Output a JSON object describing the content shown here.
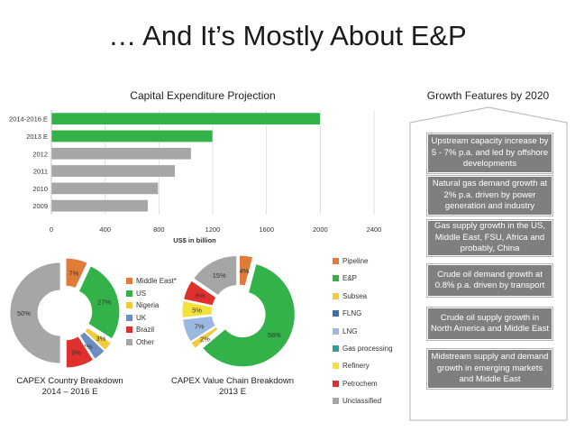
{
  "slide": {
    "title": "… And It’s Mostly About E&P"
  },
  "colors": {
    "green": "#33B24A",
    "gray": "#A6A6A6",
    "orange": "#E07B39",
    "yellow": "#F2CB3C",
    "blue": "#6C8EBF",
    "lightblue": "#9BB8E0",
    "red": "#E0302E",
    "panel": "#7F7F7F"
  },
  "chart_data": [
    {
      "type": "bar",
      "orientation": "horizontal",
      "title": "Capital Expenditure Projection",
      "xlabel": "US$ in billion",
      "categories": [
        "2014-2016 E",
        "2013 E",
        "2012",
        "2011",
        "2010",
        "2009"
      ],
      "values": [
        2000,
        1200,
        1040,
        920,
        795,
        720
      ],
      "bar_colors": [
        "#33B24A",
        "#33B24A",
        "#A6A6A6",
        "#A6A6A6",
        "#A6A6A6",
        "#A6A6A6"
      ],
      "xlim": [
        0,
        2400
      ],
      "xticks": [
        "0",
        "400",
        "800",
        "1200",
        "1600",
        "2000",
        "2400"
      ]
    },
    {
      "type": "pie",
      "style": "exploded-donut",
      "caption": [
        "CAPEX Country Breakdown",
        "2014 – 2016 E"
      ],
      "slices": [
        {
          "name": "Middle East*",
          "value": 7,
          "label": "7%",
          "color": "#E07B39"
        },
        {
          "name": "US",
          "value": 27,
          "label": "27%",
          "color": "#33B24A"
        },
        {
          "name": "Nigeria",
          "value": 3,
          "label": "3%",
          "color": "#F2CB3C"
        },
        {
          "name": "UK",
          "value": 4,
          "label": "4%",
          "color": "#6C8EBF"
        },
        {
          "name": "Brazil",
          "value": 9,
          "label": "9%",
          "color": "#E0302E"
        },
        {
          "name": "Other",
          "value": 50,
          "label": "50%",
          "color": "#A6A6A6"
        }
      ]
    },
    {
      "type": "pie",
      "style": "exploded-donut",
      "caption": [
        "CAPEX Value Chain Breakdown",
        "2013 E"
      ],
      "slices": [
        {
          "name": "Pipeline",
          "value": 4,
          "label": "4%",
          "color": "#E07B39"
        },
        {
          "name": "E&P",
          "value": 58,
          "label": "58%",
          "color": "#33B24A"
        },
        {
          "name": "Subsea",
          "value": 2,
          "label": "2%",
          "color": "#F2CB3C"
        },
        {
          "name": "FLNG",
          "value": 0,
          "label": "",
          "color": "#3B6FB6"
        },
        {
          "name": "LNG",
          "value": 7,
          "label": "7%",
          "color": "#9BB8E0"
        },
        {
          "name": "Gas processing",
          "value": 0,
          "label": "",
          "color": "#2E9E96"
        },
        {
          "name": "Refinery",
          "value": 5,
          "label": "5%",
          "color": "#F2E03C"
        },
        {
          "name": "Petrochem",
          "value": 6,
          "label": "6%",
          "color": "#E0302E"
        },
        {
          "name": "Unclassified",
          "value": 15,
          "label": "15%",
          "color": "#A6A6A6"
        }
      ]
    }
  ],
  "growth": {
    "title": "Growth Features by 2020",
    "items": [
      "Upstream capacity increase by 5 - 7% p.a. and led by offshore developments",
      "Natural gas demand growth at 2% p.a. driven by power generation and industry",
      "Gas supply growth in the US, Middle East, FSU, Africa and probably, China",
      "Crude oil demand growth at 0.8% p.a. driven by transport",
      "Crude oil supply growth in North America and Middle East",
      "Midstream supply and demand growth in emerging markets and Middle East"
    ]
  }
}
